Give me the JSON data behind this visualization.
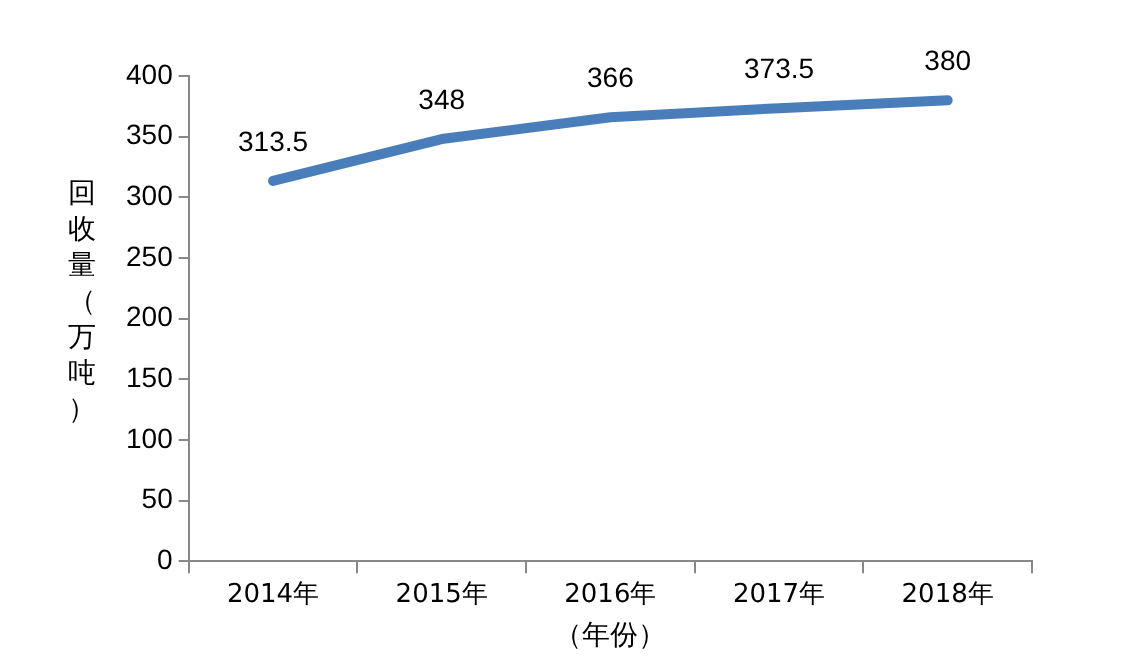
{
  "chart_data": {
    "type": "line",
    "xlabel": "（年份）",
    "ylabel": "回收量（万吨）",
    "categories": [
      "2014年",
      "2015年",
      "2016年",
      "2017年",
      "2018年"
    ],
    "series": [
      {
        "color": "#4a7ebb",
        "values": [
          313.5,
          348,
          366,
          373.5,
          380
        ]
      }
    ],
    "ylim": [
      0,
      400
    ],
    "yticks": [
      0,
      50,
      100,
      150,
      200,
      250,
      300,
      350,
      400
    ],
    "data_labels": true,
    "grid": false,
    "legend": false,
    "marker": "none",
    "line_style": "solid"
  }
}
